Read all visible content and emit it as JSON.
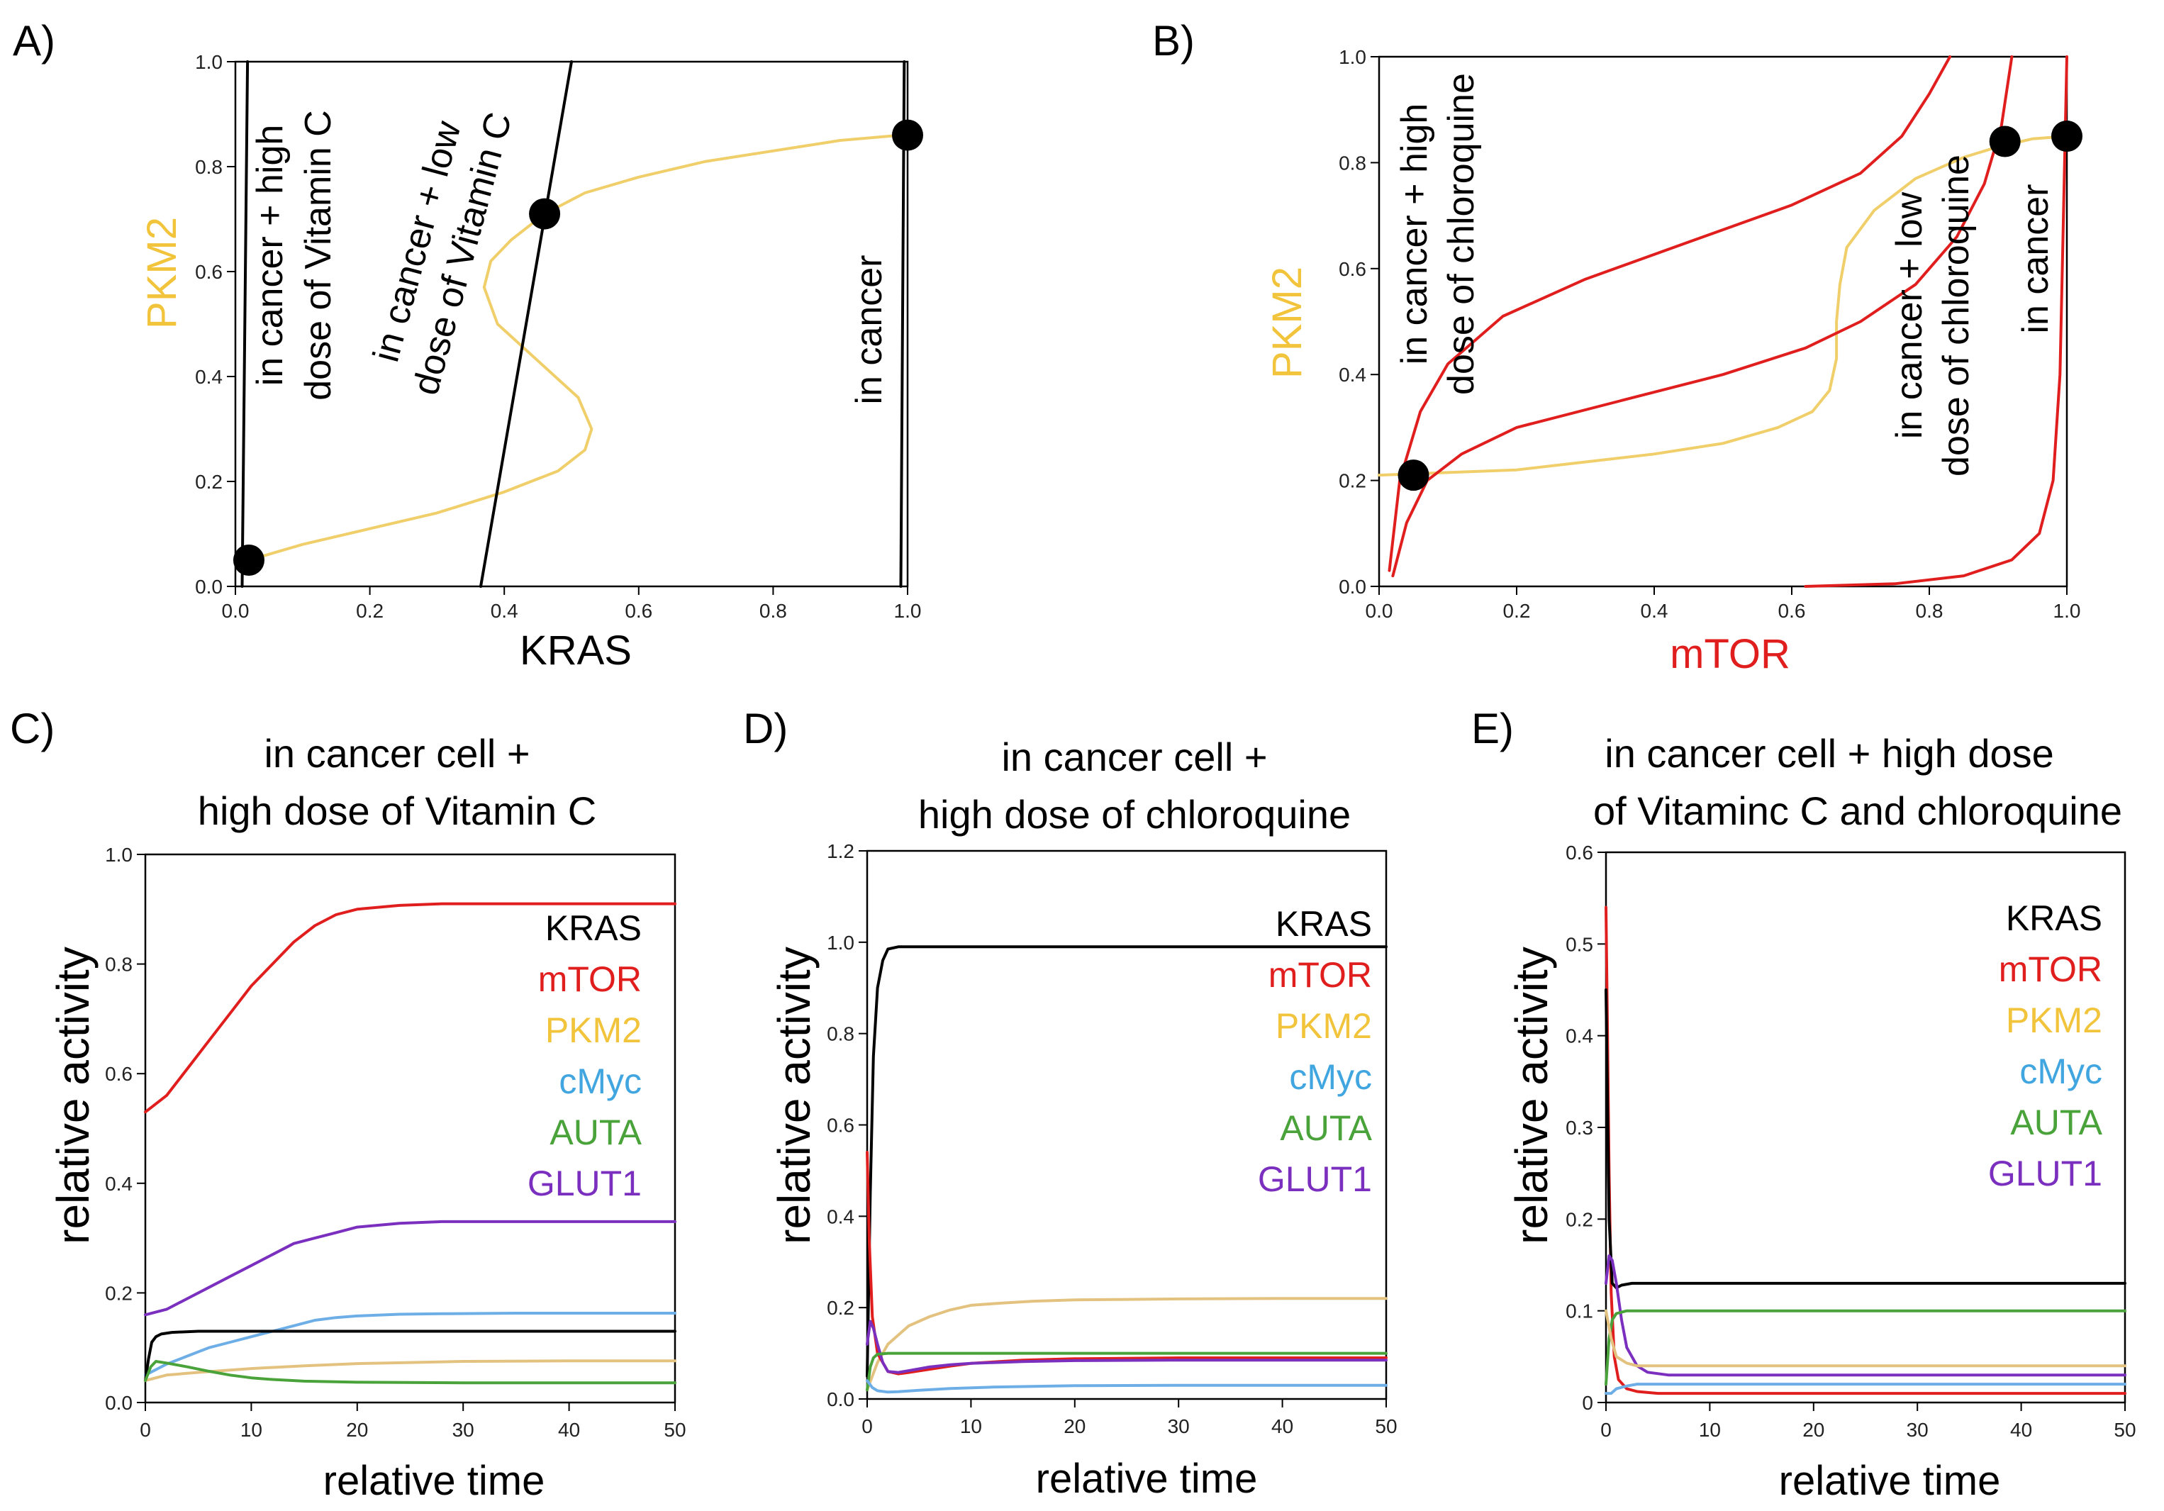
{
  "colors": {
    "KRAS": "#000000",
    "mTOR": "#e01e1e",
    "PKM2": "#f2c43c",
    "cMyc": "#41a6e0",
    "AUTA": "#4aa33a",
    "GLUT1": "#7b2fbf",
    "PKM2_curve": "#f0cf6a",
    "PKM2_ts": "#e3c27f",
    "cMyc_ts": "#6eaee6"
  },
  "chart_data": [
    {
      "panel": "A)",
      "type": "line",
      "xlabel": "KRAS",
      "ylabel": "PKM2",
      "xlim": [
        0,
        1
      ],
      "ylim": [
        0,
        1
      ],
      "xticks": [
        "0.0",
        "0.2",
        "0.4",
        "0.6",
        "0.8",
        "1.0"
      ],
      "yticks": [
        "0.0",
        "0.2",
        "0.4",
        "0.6",
        "0.8",
        "1.0"
      ],
      "annotations": [
        "in cancer + high",
        "dose of Vitamin C",
        "in cancer + low",
        "dose of Vitamin C",
        "in cancer"
      ],
      "series": [
        {
          "name": "PKM2 nullcline",
          "color": "PKM2_curve",
          "x": [
            0.02,
            0.1,
            0.2,
            0.3,
            0.4,
            0.48,
            0.52,
            0.53,
            0.51,
            0.45,
            0.39,
            0.37,
            0.38,
            0.41,
            0.46,
            0.52,
            0.6,
            0.7,
            0.8,
            0.9,
            0.99
          ],
          "y": [
            0.05,
            0.08,
            0.11,
            0.14,
            0.18,
            0.22,
            0.26,
            0.3,
            0.36,
            0.43,
            0.5,
            0.57,
            0.62,
            0.66,
            0.71,
            0.75,
            0.78,
            0.81,
            0.83,
            0.85,
            0.86
          ]
        },
        {
          "name": "KRAS nullcline (high Vitamin C)",
          "color": "KRAS",
          "x": [
            0.01,
            0.018
          ],
          "y": [
            0,
            1
          ]
        },
        {
          "name": "KRAS nullcline (low Vitamin C)",
          "color": "KRAS",
          "x": [
            0.365,
            0.5
          ],
          "y": [
            0,
            1
          ]
        },
        {
          "name": "KRAS nullcline (cancer)",
          "color": "KRAS",
          "x": [
            0.99,
            0.995
          ],
          "y": [
            0,
            1
          ]
        }
      ],
      "fixed_points": [
        {
          "x": 0.02,
          "y": 0.05
        },
        {
          "x": 0.46,
          "y": 0.71
        },
        {
          "x": 1.0,
          "y": 0.86
        }
      ]
    },
    {
      "panel": "B)",
      "type": "line",
      "xlabel": "mTOR",
      "ylabel": "PKM2",
      "xlim": [
        0,
        1
      ],
      "ylim": [
        0,
        1
      ],
      "xticks": [
        "0.0",
        "0.2",
        "0.4",
        "0.6",
        "0.8",
        "1.0"
      ],
      "yticks": [
        "0.0",
        "0.2",
        "0.4",
        "0.6",
        "0.8",
        "1.0"
      ],
      "annotations": [
        "in cancer + high",
        "dose of chloroquine",
        "in cancer + low",
        "dose of chloroquine",
        "in cancer"
      ],
      "series": [
        {
          "name": "PKM2 nullcline",
          "color": "PKM2_curve",
          "x": [
            0.0,
            0.1,
            0.2,
            0.3,
            0.4,
            0.5,
            0.58,
            0.63,
            0.655,
            0.665,
            0.665,
            0.67,
            0.68,
            0.72,
            0.78,
            0.85,
            0.9,
            0.95,
            1.0
          ],
          "y": [
            0.21,
            0.215,
            0.22,
            0.235,
            0.25,
            0.27,
            0.3,
            0.33,
            0.37,
            0.43,
            0.5,
            0.57,
            0.64,
            0.71,
            0.77,
            0.81,
            0.83,
            0.845,
            0.85
          ]
        },
        {
          "name": "mTOR nullcline (high chloroquine)",
          "color": "mTOR",
          "x": [
            0.015,
            0.03,
            0.06,
            0.1,
            0.18,
            0.3,
            0.45,
            0.6,
            0.7,
            0.76,
            0.8,
            0.83
          ],
          "y": [
            0.03,
            0.2,
            0.33,
            0.42,
            0.51,
            0.58,
            0.65,
            0.72,
            0.78,
            0.85,
            0.93,
            1.0
          ]
        },
        {
          "name": "mTOR nullcline (low chloroquine)",
          "color": "mTOR",
          "x": [
            0.02,
            0.04,
            0.07,
            0.12,
            0.2,
            0.35,
            0.5,
            0.62,
            0.7,
            0.78,
            0.84,
            0.88,
            0.905,
            0.92
          ],
          "y": [
            0.02,
            0.12,
            0.2,
            0.25,
            0.3,
            0.35,
            0.4,
            0.45,
            0.5,
            0.57,
            0.66,
            0.76,
            0.87,
            1.0
          ]
        },
        {
          "name": "mTOR nullcline (cancer)",
          "color": "mTOR",
          "x": [
            0.62,
            0.75,
            0.85,
            0.92,
            0.96,
            0.98,
            0.99,
            0.995,
            1.0
          ],
          "y": [
            0.0,
            0.005,
            0.02,
            0.05,
            0.1,
            0.2,
            0.4,
            0.7,
            1.0
          ]
        }
      ],
      "fixed_points": [
        {
          "x": 0.05,
          "y": 0.21
        },
        {
          "x": 0.91,
          "y": 0.84
        },
        {
          "x": 1.0,
          "y": 0.85
        }
      ]
    },
    {
      "panel": "C)",
      "type": "line",
      "title": [
        "in cancer cell +",
        "high dose of Vitamin C"
      ],
      "xlabel": "relative time",
      "ylabel": "relative activity",
      "xlim": [
        0,
        50
      ],
      "ylim": [
        0,
        1
      ],
      "xticks": [
        "0",
        "10",
        "20",
        "30",
        "40",
        "50"
      ],
      "yticks": [
        "0.0",
        "0.2",
        "0.4",
        "0.6",
        "0.8",
        "1.0"
      ],
      "legend": [
        "KRAS",
        "mTOR",
        "PKM2",
        "cMyc",
        "AUTA",
        "GLUT1"
      ],
      "series": [
        {
          "name": "mTOR",
          "color": "mTOR",
          "x": [
            0,
            2,
            4,
            6,
            8,
            10,
            12,
            14,
            16,
            18,
            20,
            24,
            28,
            35,
            50
          ],
          "y": [
            0.53,
            0.56,
            0.61,
            0.66,
            0.71,
            0.76,
            0.8,
            0.84,
            0.87,
            0.89,
            0.9,
            0.907,
            0.91,
            0.91,
            0.91
          ]
        },
        {
          "name": "GLUT1",
          "color": "GLUT1",
          "x": [
            0,
            2,
            4,
            6,
            8,
            10,
            12,
            14,
            16,
            18,
            20,
            24,
            28,
            35,
            50
          ],
          "y": [
            0.16,
            0.17,
            0.19,
            0.21,
            0.23,
            0.25,
            0.27,
            0.29,
            0.3,
            0.31,
            0.32,
            0.327,
            0.33,
            0.33,
            0.33
          ]
        },
        {
          "name": "cMyc",
          "color": "cMyc_ts",
          "x": [
            0,
            2,
            4,
            6,
            8,
            10,
            12,
            14,
            16,
            18,
            20,
            24,
            28,
            35,
            50
          ],
          "y": [
            0.05,
            0.07,
            0.085,
            0.1,
            0.11,
            0.12,
            0.13,
            0.14,
            0.15,
            0.155,
            0.158,
            0.161,
            0.162,
            0.163,
            0.163
          ]
        },
        {
          "name": "KRAS",
          "color": "KRAS",
          "x": [
            0,
            0.3,
            0.6,
            1,
            1.5,
            2.5,
            5,
            50
          ],
          "y": [
            0.04,
            0.08,
            0.11,
            0.12,
            0.125,
            0.128,
            0.13,
            0.13
          ]
        },
        {
          "name": "PKM2",
          "color": "PKM2_ts",
          "x": [
            0,
            2,
            5,
            10,
            15,
            20,
            25,
            30,
            40,
            50
          ],
          "y": [
            0.04,
            0.05,
            0.055,
            0.062,
            0.067,
            0.071,
            0.073,
            0.075,
            0.076,
            0.076
          ]
        },
        {
          "name": "AUTA",
          "color": "AUTA",
          "x": [
            0,
            0.5,
            1,
            2,
            4,
            6,
            8,
            10,
            12,
            15,
            20,
            30,
            50
          ],
          "y": [
            0.04,
            0.065,
            0.075,
            0.072,
            0.065,
            0.057,
            0.05,
            0.045,
            0.042,
            0.039,
            0.037,
            0.036,
            0.036
          ]
        }
      ]
    },
    {
      "panel": "D)",
      "type": "line",
      "title": [
        "in cancer cell +",
        "high dose of chloroquine"
      ],
      "xlabel": "relative time",
      "ylabel": "relative activity",
      "xlim": [
        0,
        50
      ],
      "ylim": [
        0,
        1.2
      ],
      "xticks": [
        "0",
        "10",
        "20",
        "30",
        "40",
        "50"
      ],
      "yticks": [
        "0.0",
        "0.2",
        "0.4",
        "0.6",
        "0.8",
        "1.0",
        "1.2"
      ],
      "legend": [
        "KRAS",
        "mTOR",
        "PKM2",
        "cMyc",
        "AUTA",
        "GLUT1"
      ],
      "series": [
        {
          "name": "KRAS",
          "color": "KRAS",
          "x": [
            0,
            0.3,
            0.6,
            1,
            1.5,
            2,
            3,
            50
          ],
          "y": [
            0.05,
            0.45,
            0.75,
            0.9,
            0.96,
            0.985,
            0.99,
            0.99
          ]
        },
        {
          "name": "PKM2",
          "color": "PKM2_ts",
          "x": [
            0,
            1,
            2,
            4,
            6,
            8,
            10,
            13,
            16,
            20,
            25,
            30,
            40,
            50
          ],
          "y": [
            0.02,
            0.08,
            0.12,
            0.16,
            0.18,
            0.195,
            0.205,
            0.21,
            0.214,
            0.217,
            0.218,
            0.219,
            0.22,
            0.22
          ]
        },
        {
          "name": "mTOR",
          "color": "mTOR",
          "x": [
            0,
            0.2,
            0.5,
            1,
            2,
            3,
            4,
            6,
            8,
            10,
            15,
            20,
            30,
            50
          ],
          "y": [
            0.54,
            0.35,
            0.18,
            0.1,
            0.06,
            0.055,
            0.058,
            0.065,
            0.072,
            0.078,
            0.085,
            0.088,
            0.09,
            0.09
          ]
        },
        {
          "name": "GLUT1",
          "color": "GLUT1",
          "x": [
            0,
            0.3,
            0.6,
            1,
            1.5,
            2,
            3,
            4,
            6,
            8,
            10,
            15,
            20,
            30,
            50
          ],
          "y": [
            0.12,
            0.17,
            0.155,
            0.12,
            0.08,
            0.06,
            0.058,
            0.062,
            0.07,
            0.075,
            0.078,
            0.082,
            0.084,
            0.085,
            0.085
          ]
        },
        {
          "name": "AUTA",
          "color": "AUTA",
          "x": [
            0,
            0.3,
            0.6,
            1,
            2,
            50
          ],
          "y": [
            0.02,
            0.07,
            0.09,
            0.098,
            0.1,
            0.1
          ]
        },
        {
          "name": "cMyc",
          "color": "cMyc_ts",
          "x": [
            0,
            0.5,
            1,
            2,
            3,
            5,
            8,
            12,
            20,
            30,
            50
          ],
          "y": [
            0.04,
            0.025,
            0.018,
            0.015,
            0.016,
            0.019,
            0.023,
            0.026,
            0.029,
            0.03,
            0.03
          ]
        }
      ]
    },
    {
      "panel": "E)",
      "type": "line",
      "title": [
        "in cancer cell + high dose",
        "of Vitaminc C and chloroquine"
      ],
      "xlabel": "relative time",
      "ylabel": "relative activity",
      "xlim": [
        0,
        50
      ],
      "ylim": [
        0,
        0.6
      ],
      "xticks": [
        "0",
        "10",
        "20",
        "30",
        "40",
        "50"
      ],
      "yticks": [
        "0",
        "0.1",
        "0.2",
        "0.3",
        "0.4",
        "0.5",
        "0.6"
      ],
      "legend": [
        "KRAS",
        "mTOR",
        "PKM2",
        "cMyc",
        "AUTA",
        "GLUT1"
      ],
      "series": [
        {
          "name": "mTOR",
          "color": "mTOR",
          "x": [
            0,
            0.15,
            0.3,
            0.5,
            0.8,
            1.2,
            2,
            3,
            5,
            8,
            50
          ],
          "y": [
            0.54,
            0.4,
            0.25,
            0.12,
            0.05,
            0.025,
            0.015,
            0.012,
            0.01,
            0.01,
            0.01
          ]
        },
        {
          "name": "KRAS",
          "color": "KRAS",
          "x": [
            0,
            0.3,
            0.6,
            1,
            1.5,
            2.5,
            50
          ],
          "y": [
            0.45,
            0.2,
            0.13,
            0.125,
            0.128,
            0.13,
            0.13
          ]
        },
        {
          "name": "GLUT1",
          "color": "GLUT1",
          "x": [
            0,
            0.3,
            0.6,
            1,
            1.5,
            2,
            3,
            4,
            6,
            8,
            50
          ],
          "y": [
            0.13,
            0.16,
            0.155,
            0.13,
            0.09,
            0.06,
            0.04,
            0.033,
            0.03,
            0.03,
            0.03
          ]
        },
        {
          "name": "AUTA",
          "color": "AUTA",
          "x": [
            0,
            0.3,
            0.6,
            1,
            2,
            50
          ],
          "y": [
            0.02,
            0.07,
            0.09,
            0.097,
            0.1,
            0.1
          ]
        },
        {
          "name": "PKM2",
          "color": "PKM2_ts",
          "x": [
            0,
            0.5,
            1,
            2,
            3,
            50
          ],
          "y": [
            0.1,
            0.07,
            0.05,
            0.043,
            0.04,
            0.04
          ]
        },
        {
          "name": "cMyc",
          "color": "cMyc_ts",
          "x": [
            0,
            0.5,
            1,
            2,
            3,
            50
          ],
          "y": [
            0.01,
            0.01,
            0.015,
            0.018,
            0.02,
            0.02
          ]
        }
      ]
    }
  ]
}
